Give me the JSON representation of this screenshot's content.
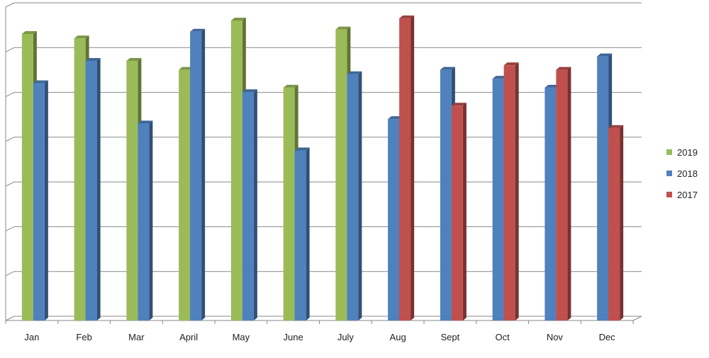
{
  "chart_data": {
    "type": "bar",
    "categories": [
      "Jan",
      "Feb",
      "Mar",
      "April",
      "May",
      "June",
      "July",
      "Aug",
      "Sept",
      "Oct",
      "Nov",
      "Dec"
    ],
    "series": [
      {
        "name": "2019",
        "color": "#9BBB59",
        "values": [
          6.4,
          6.3,
          5.8,
          5.6,
          6.7,
          5.2,
          6.5,
          null,
          null,
          null,
          null,
          null
        ]
      },
      {
        "name": "2018",
        "color": "#4F81BD",
        "values": [
          5.3,
          5.8,
          4.4,
          6.45,
          5.1,
          3.8,
          5.5,
          4.5,
          5.6,
          5.4,
          5.2,
          5.9
        ]
      },
      {
        "name": "2017",
        "color": "#C0504D",
        "values": [
          null,
          null,
          null,
          null,
          null,
          null,
          null,
          6.75,
          4.8,
          5.7,
          5.6,
          4.3
        ]
      }
    ],
    "ylim": [
      0,
      7
    ],
    "grid": true,
    "legend": "right"
  }
}
